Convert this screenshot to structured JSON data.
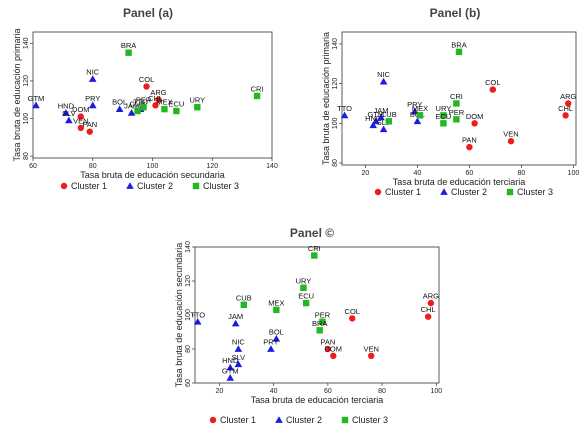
{
  "colors": {
    "cluster1": "#ee1c1c",
    "cluster2": "#1c1ce0",
    "cluster3": "#22b822"
  },
  "legend_labels": [
    "Cluster 1",
    "Cluster 2",
    "Cluster 3"
  ],
  "chart_data": [
    {
      "type": "scatter",
      "title": "Panel (a)",
      "xlabel": "Tasa bruta de educación secundaria",
      "ylabel": "Tasa bruta de educación primaria",
      "xlim": [
        60,
        140
      ],
      "ylim": [
        79,
        146
      ],
      "xticks": [
        60,
        80,
        100,
        120,
        140
      ],
      "yticks": [
        80,
        100,
        120,
        140
      ],
      "grid": false,
      "legend": "bottom",
      "points": [
        {
          "label": "GTM",
          "x": 61,
          "y": 107,
          "cluster": 2
        },
        {
          "label": "HND",
          "x": 71,
          "y": 103,
          "cluster": 2
        },
        {
          "label": "SLV",
          "x": 72,
          "y": 99,
          "cluster": 2
        },
        {
          "label": "NIC",
          "x": 80,
          "y": 121,
          "cluster": 2
        },
        {
          "label": "PRY",
          "x": 80,
          "y": 107,
          "cluster": 2
        },
        {
          "label": "BOL",
          "x": 89,
          "y": 105,
          "cluster": 2
        },
        {
          "label": "JAM",
          "x": 93,
          "y": 103,
          "cluster": 2
        },
        {
          "label": "TTO",
          "x": 96,
          "y": 105,
          "cluster": 2
        },
        {
          "label": "DOM",
          "x": 76,
          "y": 101,
          "cluster": 1
        },
        {
          "label": "VEN",
          "x": 76,
          "y": 95,
          "cluster": 1
        },
        {
          "label": "PAN",
          "x": 79,
          "y": 93,
          "cluster": 1
        },
        {
          "label": "COL",
          "x": 98,
          "y": 117,
          "cluster": 1
        },
        {
          "label": "ARG",
          "x": 102,
          "y": 110,
          "cluster": 1
        },
        {
          "label": "CHL",
          "x": 101,
          "y": 107,
          "cluster": 1
        },
        {
          "label": "BRA",
          "x": 92,
          "y": 135,
          "cluster": 3
        },
        {
          "label": "CUB",
          "x": 95,
          "y": 104,
          "cluster": 3
        },
        {
          "label": "PER",
          "x": 97,
          "y": 106,
          "cluster": 3
        },
        {
          "label": "MEX",
          "x": 104,
          "y": 105,
          "cluster": 3
        },
        {
          "label": "ECU",
          "x": 108,
          "y": 104,
          "cluster": 3
        },
        {
          "label": "URY",
          "x": 115,
          "y": 106,
          "cluster": 3
        },
        {
          "label": "CRI",
          "x": 135,
          "y": 112,
          "cluster": 3
        }
      ]
    },
    {
      "type": "scatter",
      "title": "Panel (b)",
      "xlabel": "Tasa bruta de educación terciaria",
      "ylabel": "Tasa bruta de educación primaria",
      "xlim": [
        11,
        101
      ],
      "ylim": [
        79,
        146
      ],
      "xticks": [
        20,
        40,
        60,
        80,
        100
      ],
      "yticks": [
        80,
        100,
        120,
        140
      ],
      "grid": false,
      "legend": "bottom",
      "points": [
        {
          "label": "TTO",
          "x": 12,
          "y": 104,
          "cluster": 2
        },
        {
          "label": "NIC",
          "x": 27,
          "y": 121,
          "cluster": 2
        },
        {
          "label": "GTM",
          "x": 24,
          "y": 101,
          "cluster": 2
        },
        {
          "label": "HND",
          "x": 23,
          "y": 99,
          "cluster": 2
        },
        {
          "label": "SLV",
          "x": 27,
          "y": 97,
          "cluster": 2
        },
        {
          "label": "JAM",
          "x": 26,
          "y": 103,
          "cluster": 2
        },
        {
          "label": "PRY",
          "x": 39,
          "y": 106,
          "cluster": 2
        },
        {
          "label": "BOL",
          "x": 40,
          "y": 101,
          "cluster": 2
        },
        {
          "label": "MEX",
          "x": 41,
          "y": 104,
          "cluster": 3
        },
        {
          "label": "CUB",
          "x": 29,
          "y": 101,
          "cluster": 3
        },
        {
          "label": "BRA",
          "x": 56,
          "y": 136,
          "cluster": 3
        },
        {
          "label": "CRI",
          "x": 55,
          "y": 110,
          "cluster": 3
        },
        {
          "label": "URY",
          "x": 50,
          "y": 104,
          "cluster": 3
        },
        {
          "label": "ECU",
          "x": 50,
          "y": 100,
          "cluster": 3
        },
        {
          "label": "PER",
          "x": 55,
          "y": 102,
          "cluster": 3
        },
        {
          "label": "COL",
          "x": 69,
          "y": 117,
          "cluster": 1
        },
        {
          "label": "DOM",
          "x": 62,
          "y": 100,
          "cluster": 1
        },
        {
          "label": "PAN",
          "x": 60,
          "y": 88,
          "cluster": 1
        },
        {
          "label": "VEN",
          "x": 76,
          "y": 91,
          "cluster": 1
        },
        {
          "label": "ARG",
          "x": 98,
          "y": 110,
          "cluster": 1
        },
        {
          "label": "CHL",
          "x": 97,
          "y": 104,
          "cluster": 1
        }
      ]
    },
    {
      "type": "scatter",
      "title": "Panel ©",
      "xlabel": "Tasa bruta de educación terciaria",
      "ylabel": "Tasa bruta de educación secundaria",
      "xlim": [
        11,
        101
      ],
      "ylim": [
        60,
        140
      ],
      "xticks": [
        20,
        40,
        60,
        80,
        100
      ],
      "yticks": [
        60,
        80,
        100,
        120,
        140
      ],
      "grid": false,
      "legend": "bottom",
      "points": [
        {
          "label": "TTO",
          "x": 12,
          "y": 96,
          "cluster": 2
        },
        {
          "label": "JAM",
          "x": 26,
          "y": 95,
          "cluster": 2
        },
        {
          "label": "NIC",
          "x": 27,
          "y": 80,
          "cluster": 2
        },
        {
          "label": "SLV",
          "x": 27,
          "y": 71,
          "cluster": 2
        },
        {
          "label": "HND",
          "x": 24,
          "y": 69,
          "cluster": 2
        },
        {
          "label": "GTM",
          "x": 24,
          "y": 63,
          "cluster": 2
        },
        {
          "label": "BOL",
          "x": 41,
          "y": 86,
          "cluster": 2
        },
        {
          "label": "PRY",
          "x": 39,
          "y": 80,
          "cluster": 2
        },
        {
          "label": "CRI",
          "x": 55,
          "y": 135,
          "cluster": 3
        },
        {
          "label": "URY",
          "x": 51,
          "y": 116,
          "cluster": 3
        },
        {
          "label": "ECU",
          "x": 52,
          "y": 107,
          "cluster": 3
        },
        {
          "label": "CUB",
          "x": 29,
          "y": 106,
          "cluster": 3
        },
        {
          "label": "MEX",
          "x": 41,
          "y": 103,
          "cluster": 3
        },
        {
          "label": "PER",
          "x": 58,
          "y": 96,
          "cluster": 3
        },
        {
          "label": "BRA",
          "x": 57,
          "y": 91,
          "cluster": 3
        },
        {
          "label": "COL",
          "x": 69,
          "y": 98,
          "cluster": 1
        },
        {
          "label": "PAN",
          "x": 60,
          "y": 80,
          "cluster": 1
        },
        {
          "label": "DOM",
          "x": 62,
          "y": 76,
          "cluster": 1
        },
        {
          "label": "VEN",
          "x": 76,
          "y": 76,
          "cluster": 1
        },
        {
          "label": "ARG",
          "x": 98,
          "y": 107,
          "cluster": 1
        },
        {
          "label": "CHL",
          "x": 97,
          "y": 99,
          "cluster": 1
        }
      ]
    }
  ]
}
